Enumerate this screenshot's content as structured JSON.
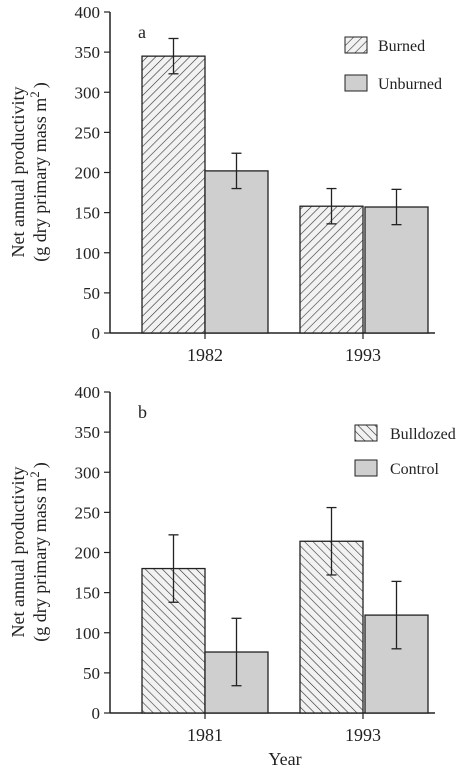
{
  "chart_data": [
    {
      "type": "bar",
      "panel_label": "a",
      "categories": [
        "1982",
        "1993"
      ],
      "series": [
        {
          "name": "Burned",
          "pattern": "diag-up",
          "values": [
            345,
            158
          ],
          "errors": [
            22,
            22
          ]
        },
        {
          "name": "Unburned",
          "pattern": "gray",
          "values": [
            202,
            157
          ],
          "errors": [
            22,
            22
          ]
        }
      ],
      "ylim": [
        0,
        400
      ],
      "yticks": [
        "0",
        "50",
        "100",
        "150",
        "200",
        "250",
        "300",
        "350",
        "400"
      ],
      "ylabel_line1": "Net annual productivity",
      "ylabel_line2": "(g dry primary mass m",
      "ylabel_sup": "2",
      "ylabel_close": ")",
      "xlabel": "",
      "legend_position": "top-right",
      "grid": false
    },
    {
      "type": "bar",
      "panel_label": "b",
      "categories": [
        "1981",
        "1993"
      ],
      "series": [
        {
          "name": "Bulldozed",
          "pattern": "diag-down",
          "values": [
            180,
            214
          ],
          "errors": [
            42,
            42
          ]
        },
        {
          "name": "Control",
          "pattern": "gray",
          "values": [
            76,
            122
          ],
          "errors": [
            42,
            42
          ]
        }
      ],
      "ylim": [
        0,
        400
      ],
      "yticks": [
        "0",
        "50",
        "100",
        "150",
        "200",
        "250",
        "300",
        "350",
        "400"
      ],
      "ylabel_line1": "Net annual productivity",
      "ylabel_line2": "(g dry primary mass m",
      "ylabel_sup": "2",
      "ylabel_close": ")",
      "xlabel": "Year",
      "legend_position": "top-right",
      "grid": false
    }
  ],
  "colors": {
    "axis": "#222222",
    "bar_gray": "#cfcfcf",
    "hatch_bg": "#f2f2f2",
    "hatch_line": "#333333"
  }
}
